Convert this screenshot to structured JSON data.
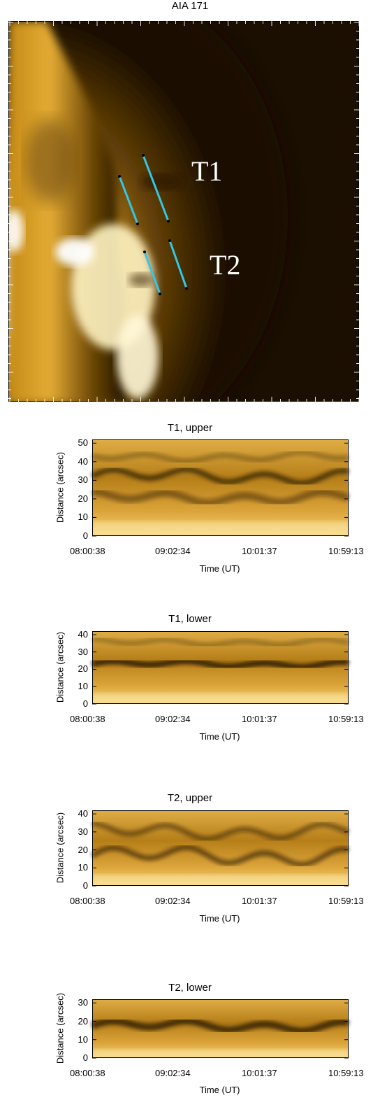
{
  "figure": {
    "main_title": "AIA 171",
    "slit_labels": [
      "T1",
      "T2"
    ],
    "colors": {
      "slit": "#33c6e8",
      "background": "#1a0f00",
      "bright": "#fff3c2",
      "mid": "#d6a020"
    }
  },
  "chart_data": [
    {
      "type": "heatmap",
      "title": "T1, upper",
      "xlabel": "Time (UT)",
      "ylabel": "Distance (arcsec)",
      "x_ticks": [
        "08:00:38",
        "09:02:34",
        "10:01:37",
        "10:59:13"
      ],
      "y_ticks": [
        "0",
        "10",
        "20",
        "30",
        "40",
        "50"
      ],
      "ylim": [
        0,
        52
      ]
    },
    {
      "type": "heatmap",
      "title": "T1, lower",
      "xlabel": "Time (UT)",
      "ylabel": "Distance (arcsec)",
      "x_ticks": [
        "08:00:38",
        "09:02:34",
        "10:01:37",
        "10:59:13"
      ],
      "y_ticks": [
        "0",
        "10",
        "20",
        "30",
        "40"
      ],
      "ylim": [
        0,
        42
      ]
    },
    {
      "type": "heatmap",
      "title": "T2, upper",
      "xlabel": "Time (UT)",
      "ylabel": "Distance (arcsec)",
      "x_ticks": [
        "08:00:38",
        "09:02:34",
        "10:01:37",
        "10:59:13"
      ],
      "y_ticks": [
        "0",
        "10",
        "20",
        "30",
        "40"
      ],
      "ylim": [
        0,
        42
      ]
    },
    {
      "type": "heatmap",
      "title": "T2, lower",
      "xlabel": "Time (UT)",
      "ylabel": "Distance (arcsec)",
      "x_ticks": [
        "08:00:38",
        "09:02:34",
        "10:01:37",
        "10:59:13"
      ],
      "y_ticks": [
        "0",
        "10",
        "20",
        "30"
      ],
      "ylim": [
        0,
        32
      ]
    }
  ]
}
